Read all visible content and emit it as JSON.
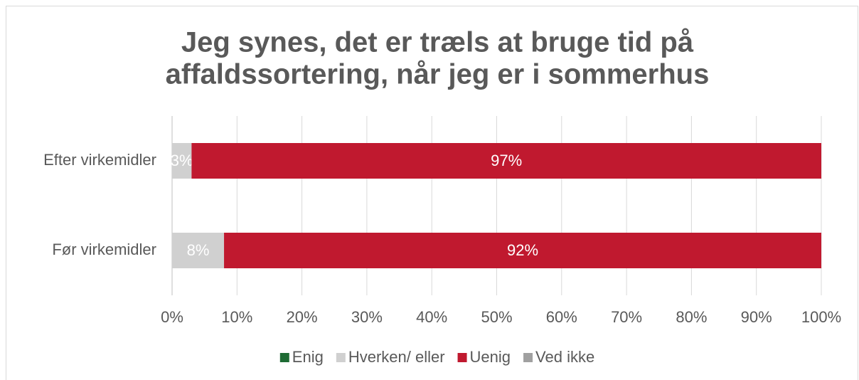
{
  "chart_data": {
    "type": "stacked_barh",
    "title": [
      "Jeg synes, det er træls at bruge tid på",
      "affaldssortering, når jeg er i sommerhus"
    ],
    "categories": [
      "Efter virkemidler",
      "Før virkemidler"
    ],
    "series": [
      {
        "name": "Enig",
        "color": "#1e6b34",
        "values": [
          0,
          0
        ]
      },
      {
        "name": "Hverken/ eller",
        "color": "#d0d0d0",
        "values": [
          3,
          8
        ],
        "value_labels": [
          "3%",
          "8%"
        ]
      },
      {
        "name": "Uenig",
        "color": "#c0192f",
        "values": [
          97,
          92
        ],
        "value_labels": [
          "97%",
          "92%"
        ]
      },
      {
        "name": "Ved ikke",
        "color": "#a0a0a0",
        "values": [
          0,
          0
        ]
      }
    ],
    "xlim": [
      0,
      100
    ],
    "xticks": [
      {
        "value": 0,
        "label": "0%"
      },
      {
        "value": 10,
        "label": "10%"
      },
      {
        "value": 20,
        "label": "20%"
      },
      {
        "value": 30,
        "label": "30%"
      },
      {
        "value": 40,
        "label": "40%"
      },
      {
        "value": 50,
        "label": "50%"
      },
      {
        "value": 60,
        "label": "60%"
      },
      {
        "value": 70,
        "label": "70%"
      },
      {
        "value": 80,
        "label": "80%"
      },
      {
        "value": 90,
        "label": "90%"
      },
      {
        "value": 100,
        "label": "100%"
      }
    ],
    "grid": true,
    "legend": "bottom"
  }
}
